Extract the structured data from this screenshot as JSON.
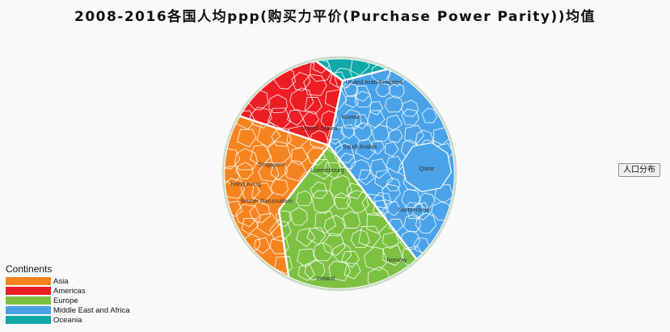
{
  "title": "2008-2016各国人均ppp(购买力平价(Purchase Power Parity))均值",
  "button_label": "人口分布",
  "legend": {
    "title": "Continents",
    "items": [
      {
        "label": "Asia",
        "color": "#f58420"
      },
      {
        "label": "Americas",
        "color": "#ed1d24"
      },
      {
        "label": "Europe",
        "color": "#7cc142"
      },
      {
        "label": "Middle East and Africa",
        "color": "#4aa3e8"
      },
      {
        "label": "Oceania",
        "color": "#0fa9a7"
      }
    ]
  },
  "chart_data": {
    "type": "voronoi-treemap",
    "continents": [
      {
        "name": "Asia",
        "color": "#f58420",
        "labeled_countries": [
          "Singapore",
          "Hong Kong",
          "Brunei Darussalam"
        ]
      },
      {
        "name": "Americas",
        "color": "#ed1d24",
        "labeled_countries": [
          "United States"
        ]
      },
      {
        "name": "Europe",
        "color": "#7cc142",
        "labeled_countries": [
          "Luxembourg",
          "Switzerland",
          "Norway",
          "Ireland"
        ]
      },
      {
        "name": "Middle East and Africa",
        "color": "#4aa3e8",
        "labeled_countries": [
          "United Arab Emirates",
          "Kuwait",
          "Saudi Arabia",
          "Qatar"
        ]
      },
      {
        "name": "Oceania",
        "color": "#0fa9a7",
        "labeled_countries": []
      }
    ]
  }
}
